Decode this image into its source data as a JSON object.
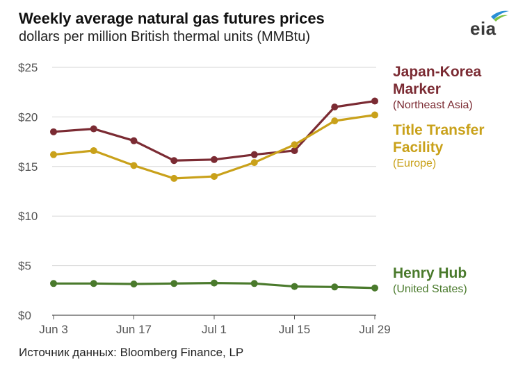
{
  "header": {
    "title": "Weekly average natural gas futures prices",
    "subtitle": "dollars per million British thermal units (MMBtu)",
    "logo_text": "eia"
  },
  "footer": {
    "source": "Источник данных: Bloomberg Finance, LP"
  },
  "chart_data": {
    "type": "line",
    "title": "Weekly average natural gas futures prices",
    "subtitle": "dollars per million British thermal units (MMBtu)",
    "x": [
      "Jun 3",
      "Jun 10",
      "Jun 17",
      "Jun 24",
      "Jul 1",
      "Jul 8",
      "Jul 15",
      "Jul 22",
      "Jul 29"
    ],
    "x_tick_labels": [
      "Jun 3",
      "Jun 17",
      "Jul 1",
      "Jul 15",
      "Jul 29"
    ],
    "y_tick_labels": [
      "$25",
      "$20",
      "$15",
      "$10",
      "$5",
      "$0"
    ],
    "ylim": [
      0,
      25
    ],
    "grid": "horizontal",
    "legend": "direct labels at right",
    "series": [
      {
        "name": "Japan-Korea Marker",
        "name_lines": [
          "Japan-Korea",
          "Marker"
        ],
        "region": "(Northeast Asia)",
        "color": "#7b2b33",
        "values": [
          18.5,
          18.8,
          17.6,
          15.6,
          15.7,
          16.2,
          16.6,
          21.0,
          21.6
        ]
      },
      {
        "name": "Title Transfer Facility",
        "name_lines": [
          "Title Transfer",
          "Facility"
        ],
        "region": "(Europe)",
        "color": "#c9a11a",
        "values": [
          16.2,
          16.6,
          15.1,
          13.8,
          14.0,
          15.4,
          17.2,
          19.6,
          20.2
        ]
      },
      {
        "name": "Henry Hub",
        "name_lines": [
          "Henry Hub"
        ],
        "region": "(United States)",
        "color": "#4a7a2c",
        "values": [
          3.2,
          3.2,
          3.15,
          3.2,
          3.25,
          3.2,
          2.9,
          2.85,
          2.75
        ]
      }
    ]
  }
}
